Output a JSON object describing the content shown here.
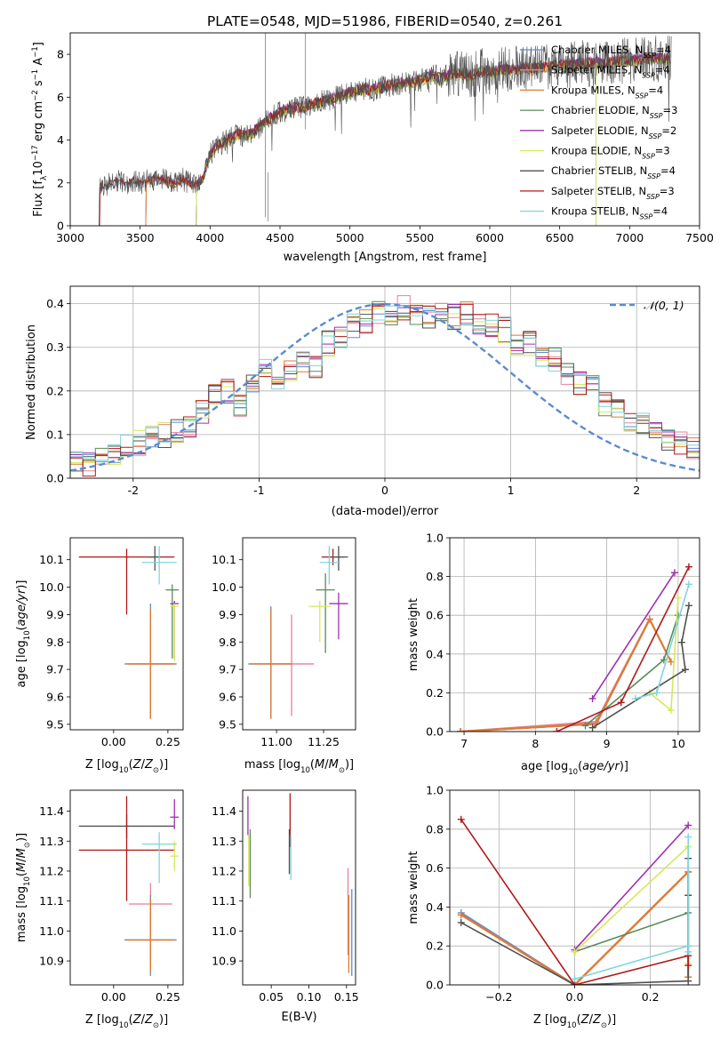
{
  "title": "PLATE=0548, MJD=51986, FIBERID=0540, z=0.261",
  "colors": {
    "Chabrier MILES": "#5b8bd0",
    "Salpeter MILES": "#e4829a",
    "Kroupa MILES": "#de7a32",
    "Chabrier ELODIE": "#5a8a5a",
    "Salpeter ELODIE": "#a030b0",
    "Kroupa ELODIE": "#d6e85a",
    "Chabrier STELIB": "#505050",
    "Salpeter STELIB": "#b01818",
    "Kroupa STELIB": "#80d4dc"
  },
  "chart_data": [
    {
      "id": "spectrum",
      "type": "line",
      "xlabel": "wavelength [Angstrom, rest frame]",
      "ylabel": "Flux [f_λ 10^-17 erg cm^-2 s^-1 A^-1]",
      "xlim": [
        3000,
        7500
      ],
      "ylim": [
        0,
        9
      ],
      "xticks": [
        3000,
        3500,
        4000,
        4500,
        5000,
        5500,
        6000,
        6500,
        7000,
        7500
      ],
      "yticks": [
        0,
        2,
        4,
        6,
        8
      ],
      "legend_position": "top-right",
      "legend": [
        {
          "label": "Chabrier MILES, N",
          "sub": "SSP",
          "tail": "=4",
          "model": "Chabrier MILES"
        },
        {
          "label": "Salpeter MILES, N",
          "sub": "SSP",
          "tail": "=4",
          "model": "Salpeter MILES"
        },
        {
          "label": "Kroupa MILES, N",
          "sub": "SSP",
          "tail": "=4",
          "model": "Kroupa MILES"
        },
        {
          "label": "Chabrier ELODIE, N",
          "sub": "SSP",
          "tail": "=3",
          "model": "Chabrier ELODIE"
        },
        {
          "label": "Salpeter ELODIE, N",
          "sub": "SSP",
          "tail": "=2",
          "model": "Salpeter ELODIE"
        },
        {
          "label": "Kroupa ELODIE, N",
          "sub": "SSP",
          "tail": "=3",
          "model": "Kroupa ELODIE"
        },
        {
          "label": "Chabrier STELIB, N",
          "sub": "SSP",
          "tail": "=4",
          "model": "Chabrier STELIB"
        },
        {
          "label": "Salpeter STELIB, N",
          "sub": "SSP",
          "tail": "=3",
          "model": "Salpeter STELIB"
        },
        {
          "label": "Kroupa STELIB, N",
          "sub": "SSP",
          "tail": "=4",
          "model": "Kroupa STELIB"
        }
      ],
      "data_wavelength": [
        3200,
        3250,
        3300,
        3350,
        3400,
        3450,
        3500,
        3550,
        3600,
        3650,
        3700,
        3750,
        3800,
        3850,
        3900,
        3950,
        4000,
        4050,
        4100,
        4150,
        4200,
        4250,
        4300,
        4350,
        4400,
        4450,
        4500,
        4550,
        4600,
        4650,
        4700,
        4750,
        4800,
        4850,
        4900,
        4950,
        5000,
        5050,
        5100,
        5150,
        5200,
        5250,
        5300,
        5350,
        5400,
        5450,
        5500,
        5550,
        5600,
        5650,
        5700,
        5750,
        5800,
        5850,
        5900,
        5950,
        6000,
        6050,
        6100,
        6150,
        6200,
        6250,
        6300,
        6350,
        6400,
        6450,
        6500,
        6550,
        6600,
        6650,
        6700,
        6750,
        6800,
        6850,
        6900,
        6950,
        7000,
        7050,
        7100,
        7150,
        7200,
        7250,
        7300
      ],
      "data_flux": [
        1.8,
        1.9,
        2.0,
        2.1,
        2.0,
        2.1,
        2.0,
        2.1,
        2.2,
        2.2,
        2.1,
        2.0,
        2.2,
        2.0,
        1.9,
        2.2,
        3.3,
        3.8,
        3.9,
        4.1,
        4.3,
        4.2,
        4.3,
        4.6,
        4.9,
        5.1,
        5.3,
        5.4,
        5.5,
        5.5,
        5.6,
        5.7,
        5.8,
        5.9,
        6.0,
        6.1,
        6.2,
        6.3,
        6.4,
        6.3,
        6.4,
        6.5,
        6.6,
        6.6,
        6.7,
        6.7,
        6.8,
        6.9,
        7.0,
        6.9,
        7.0,
        7.1,
        7.1,
        7.0,
        7.1,
        7.2,
        7.2,
        7.2,
        7.3,
        7.3,
        7.3,
        7.4,
        7.3,
        7.4,
        7.4,
        7.5,
        7.5,
        7.5,
        7.5,
        7.6,
        7.6,
        7.6,
        7.6,
        7.6,
        7.7,
        7.7,
        7.7,
        7.7,
        7.8,
        7.8,
        7.8,
        7.8,
        7.8
      ],
      "model_start": {
        "Chabrier MILES": 3540,
        "Salpeter MILES": 3540,
        "Kroupa MILES": 3540,
        "Chabrier ELODIE": 3900,
        "Salpeter ELODIE": 3900,
        "Kroupa ELODIE": 3900,
        "Chabrier STELIB": 3210,
        "Salpeter STELIB": 3210,
        "Kroupa STELIB": 3210
      }
    },
    {
      "id": "residuals",
      "type": "line",
      "xlabel": "(data-model)/error",
      "ylabel": "Normed distribution",
      "xlim": [
        -2.5,
        2.5
      ],
      "ylim": [
        0,
        0.44
      ],
      "xticks": [
        -2,
        -1,
        0,
        1,
        2
      ],
      "yticks": [
        0.0,
        0.1,
        0.2,
        0.3,
        0.4
      ],
      "grid": true,
      "legend_position": "top-right",
      "legend_label": "𝒩(0, 1)",
      "reference_curve": "gaussian mean 0 sigma 1",
      "bin_width": 0.1,
      "base_hist": [
        0.04,
        0.03,
        0.05,
        0.06,
        0.07,
        0.08,
        0.09,
        0.1,
        0.11,
        0.12,
        0.15,
        0.19,
        0.2,
        0.17,
        0.21,
        0.26,
        0.23,
        0.24,
        0.27,
        0.26,
        0.31,
        0.32,
        0.35,
        0.36,
        0.38,
        0.37,
        0.39,
        0.38,
        0.37,
        0.39,
        0.37,
        0.38,
        0.36,
        0.35,
        0.34,
        0.31,
        0.31,
        0.28,
        0.27,
        0.24,
        0.22,
        0.21,
        0.17,
        0.15,
        0.13,
        0.12,
        0.1,
        0.09,
        0.08,
        0.07
      ]
    },
    {
      "id": "age_vs_Z",
      "type": "scatter",
      "xlabel": "Z [log10(Z/Z⊙)]",
      "ylabel": "age [log10(age/yr)]",
      "xlim": [
        -0.2,
        0.32
      ],
      "ylim": [
        9.48,
        10.18
      ],
      "xticks": [
        0.0,
        0.25
      ],
      "xticklabels": [
        "0.00",
        "0.25"
      ],
      "yticks": [
        9.5,
        9.6,
        9.7,
        9.8,
        9.9,
        10.0,
        10.1
      ],
      "points": [
        {
          "model": "Salpeter STELIB",
          "x": 0.06,
          "y": 10.11,
          "xerr": 0.22,
          "yerr": [
            0.21,
            0.03
          ]
        },
        {
          "model": "Chabrier STELIB",
          "x": 0.19,
          "y": 10.11,
          "xerr": 0.03,
          "yerr": [
            0.05,
            0.04
          ]
        },
        {
          "model": "Kroupa STELIB",
          "x": 0.21,
          "y": 10.09,
          "xerr": 0.08,
          "yerr": [
            0.08,
            0.06
          ]
        },
        {
          "model": "Chabrier ELODIE",
          "x": 0.27,
          "y": 9.99,
          "xerr": 0.03,
          "yerr": [
            0.25,
            0.02
          ]
        },
        {
          "model": "Salpeter ELODIE",
          "x": 0.28,
          "y": 9.94,
          "xerr": 0.02,
          "yerr": [
            0.2,
            0.01
          ]
        },
        {
          "model": "Kroupa ELODIE",
          "x": 0.28,
          "y": 9.93,
          "xerr": 0.02,
          "yerr": [
            0.2,
            0.01
          ]
        },
        {
          "model": "Chabrier MILES",
          "x": 0.17,
          "y": 9.72,
          "xerr": 0.12,
          "yerr": [
            0.2,
            0.22
          ]
        },
        {
          "model": "Salpeter MILES",
          "x": 0.17,
          "y": 9.72,
          "xerr": 0.1,
          "yerr": [
            0.18,
            0.19
          ]
        },
        {
          "model": "Kroupa MILES",
          "x": 0.17,
          "y": 9.72,
          "xerr": 0.11,
          "yerr": [
            0.2,
            0.2
          ]
        }
      ]
    },
    {
      "id": "age_vs_mass",
      "type": "scatter",
      "xlabel": "mass [log10(M/M⊙)]",
      "xlim": [
        10.82,
        11.42
      ],
      "ylim": [
        9.48,
        10.18
      ],
      "xticks": [
        11.0,
        11.25
      ],
      "xticklabels": [
        "11.00",
        "11.25"
      ],
      "yticks": [
        9.5,
        9.6,
        9.7,
        9.8,
        9.9,
        10.0,
        10.1
      ],
      "points": [
        {
          "model": "Salpeter STELIB",
          "x": 11.3,
          "y": 10.11,
          "xerr": 0.06,
          "yerr": [
            0.03,
            0.03
          ]
        },
        {
          "model": "Chabrier STELIB",
          "x": 11.33,
          "y": 10.11,
          "xerr": 0.05,
          "yerr": [
            0.05,
            0.04
          ]
        },
        {
          "model": "Kroupa STELIB",
          "x": 11.28,
          "y": 10.09,
          "xerr": 0.05,
          "yerr": [
            0.08,
            0.06
          ]
        },
        {
          "model": "Chabrier ELODIE",
          "x": 11.26,
          "y": 9.99,
          "xerr": 0.05,
          "yerr": [
            0.23,
            0.06
          ]
        },
        {
          "model": "Salpeter ELODIE",
          "x": 11.33,
          "y": 9.94,
          "xerr": 0.05,
          "yerr": [
            0.13,
            0.04
          ]
        },
        {
          "model": "Kroupa ELODIE",
          "x": 11.23,
          "y": 9.93,
          "xerr": 0.06,
          "yerr": [
            0.13,
            0.02
          ]
        },
        {
          "model": "Chabrier MILES",
          "x": 10.97,
          "y": 9.72,
          "xerr": 0.12,
          "yerr": [
            0.2,
            0.21
          ]
        },
        {
          "model": "Salpeter MILES",
          "x": 11.08,
          "y": 9.72,
          "xerr": 0.12,
          "yerr": [
            0.19,
            0.18
          ]
        },
        {
          "model": "Kroupa MILES",
          "x": 10.97,
          "y": 9.72,
          "xerr": 0.11,
          "yerr": [
            0.2,
            0.2
          ]
        }
      ]
    },
    {
      "id": "weight_vs_age",
      "type": "line",
      "xlabel": "age [log10(age/yr)]",
      "ylabel": "mass weight",
      "xlim": [
        6.8,
        10.3
      ],
      "ylim": [
        0,
        1
      ],
      "xticks": [
        7,
        8,
        9,
        10
      ],
      "yticks": [
        0.0,
        0.2,
        0.4,
        0.6,
        0.8,
        1.0
      ],
      "grid": true,
      "series": [
        {
          "model": "Chabrier MILES",
          "x": [
            6.95,
            8.85,
            9.6
          ],
          "y": [
            0.0,
            0.04,
            0.58
          ]
        },
        {
          "model": "Salpeter MILES",
          "x": [
            6.95,
            8.85,
            9.6
          ],
          "y": [
            0.0,
            0.05,
            0.58
          ]
        },
        {
          "model": "Kroupa MILES",
          "x": [
            6.95,
            8.85,
            9.6,
            9.9
          ],
          "y": [
            0.0,
            0.04,
            0.58,
            0.36
          ]
        },
        {
          "model": "Chabrier ELODIE",
          "x": [
            8.7,
            9.8,
            10.0
          ],
          "y": [
            0.03,
            0.37,
            0.6
          ]
        },
        {
          "model": "Salpeter ELODIE",
          "x": [
            8.8,
            9.95
          ],
          "y": [
            0.17,
            0.82
          ]
        },
        {
          "model": "Kroupa ELODIE",
          "x": [
            9.6,
            9.9,
            10.0
          ],
          "y": [
            0.2,
            0.11,
            0.69
          ]
        },
        {
          "model": "Chabrier STELIB",
          "x": [
            8.8,
            10.1,
            10.05,
            10.15
          ],
          "y": [
            0.02,
            0.32,
            0.46,
            0.65
          ]
        },
        {
          "model": "Salpeter STELIB",
          "x": [
            8.3,
            9.2,
            10.15
          ],
          "y": [
            0.0,
            0.15,
            0.85
          ]
        },
        {
          "model": "Kroupa STELIB",
          "x": [
            9.4,
            9.7,
            10.15
          ],
          "y": [
            0.17,
            0.2,
            0.76
          ]
        }
      ]
    },
    {
      "id": "mass_vs_Z",
      "type": "scatter",
      "xlabel": "Z [log10(Z/Z⊙)]",
      "ylabel": "mass [log10(M/M⊙)]",
      "xlim": [
        -0.2,
        0.32
      ],
      "ylim": [
        10.82,
        11.47
      ],
      "xticks": [
        0.0,
        0.25
      ],
      "xticklabels": [
        "0.00",
        "0.25"
      ],
      "yticks": [
        10.9,
        11.0,
        11.1,
        11.2,
        11.3,
        11.4
      ],
      "points": [
        {
          "model": "Chabrier STELIB",
          "x": 0.06,
          "y": 11.35,
          "xerr": 0.22,
          "yerr": [
            0.04,
            0.04
          ]
        },
        {
          "model": "Salpeter STELIB",
          "x": 0.06,
          "y": 11.27,
          "xerr": 0.22,
          "yerr": [
            0.17,
            0.18
          ]
        },
        {
          "model": "Salpeter ELODIE",
          "x": 0.28,
          "y": 11.38,
          "xerr": 0.02,
          "yerr": [
            0.04,
            0.06
          ]
        },
        {
          "model": "Kroupa STELIB",
          "x": 0.21,
          "y": 11.29,
          "xerr": 0.08,
          "yerr": [
            0.13,
            0.04
          ]
        },
        {
          "model": "Kroupa ELODIE",
          "x": 0.28,
          "y": 11.25,
          "xerr": 0.02,
          "yerr": [
            0.05,
            0.05
          ]
        },
        {
          "model": "Salpeter MILES",
          "x": 0.17,
          "y": 11.09,
          "xerr": 0.1,
          "yerr": [
            0.19,
            0.07
          ]
        },
        {
          "model": "Chabrier MILES",
          "x": 0.17,
          "y": 10.97,
          "xerr": 0.12,
          "yerr": [
            0.12,
            0.15
          ]
        },
        {
          "model": "Kroupa MILES",
          "x": 0.17,
          "y": 10.97,
          "xerr": 0.11,
          "yerr": [
            0.11,
            0.14
          ]
        }
      ]
    },
    {
      "id": "mass_vs_ebv",
      "type": "scatter",
      "xlabel": "E(B-V)",
      "xlim": [
        0.012,
        0.162
      ],
      "ylim": [
        10.82,
        11.47
      ],
      "xticks": [
        0.05,
        0.1,
        0.15
      ],
      "xticklabels": [
        "0.05",
        "0.10",
        "0.15"
      ],
      "yticks": [
        10.9,
        11.0,
        11.1,
        11.2,
        11.3,
        11.4
      ],
      "points": [
        {
          "model": "Salpeter ELODIE",
          "x": 0.019,
          "y": 11.38,
          "yerr": [
            0.06,
            0.07
          ]
        },
        {
          "model": "Kroupa ELODIE",
          "x": 0.02,
          "y": 11.25,
          "yerr": [
            0.1,
            0.07
          ]
        },
        {
          "model": "Chabrier ELODIE",
          "x": 0.022,
          "y": 11.22,
          "yerr": [
            0.11,
            0.12
          ]
        },
        {
          "model": "Salpeter STELIB",
          "x": 0.075,
          "y": 11.35,
          "yerr": [
            0.07,
            0.11
          ]
        },
        {
          "model": "Chabrier STELIB",
          "x": 0.074,
          "y": 11.28,
          "yerr": [
            0.09,
            0.06
          ]
        },
        {
          "model": "Kroupa STELIB",
          "x": 0.076,
          "y": 11.26,
          "yerr": [
            0.09,
            0.06
          ]
        },
        {
          "model": "Salpeter MILES",
          "x": 0.152,
          "y": 11.09,
          "yerr": [
            0.17,
            0.12
          ]
        },
        {
          "model": "Kroupa MILES",
          "x": 0.153,
          "y": 10.97,
          "yerr": [
            0.11,
            0.15
          ]
        },
        {
          "model": "Chabrier MILES",
          "x": 0.157,
          "y": 10.97,
          "yerr": [
            0.12,
            0.17
          ]
        }
      ]
    },
    {
      "id": "weight_vs_Z",
      "type": "line",
      "xlabel": "Z [log10(Z/Z⊙)]",
      "ylabel": "mass weight",
      "xlim": [
        -0.33,
        0.33
      ],
      "ylim": [
        0,
        1
      ],
      "xticks": [
        -0.2,
        0.0,
        0.2
      ],
      "xticklabels": [
        "−0.2",
        "0.0",
        "0.2"
      ],
      "yticks": [
        0.0,
        0.2,
        0.4,
        0.6,
        0.8,
        1.0
      ],
      "grid": true,
      "series": [
        {
          "model": "Chabrier MILES",
          "x": [
            -0.3,
            0.0,
            0.3
          ],
          "y": [
            0.37,
            0.0,
            0.58
          ]
        },
        {
          "model": "Salpeter MILES",
          "x": [
            -0.3,
            0.0,
            0.3
          ],
          "y": [
            0.36,
            0.0,
            0.58
          ]
        },
        {
          "model": "Kroupa MILES",
          "x": [
            -0.3,
            0.0,
            0.3,
            0.3
          ],
          "y": [
            0.36,
            0.0,
            0.58,
            0.04
          ]
        },
        {
          "model": "Chabrier ELODIE",
          "x": [
            0.0,
            0.3
          ],
          "y": [
            0.17,
            0.37
          ]
        },
        {
          "model": "Salpeter ELODIE",
          "x": [
            0.0,
            0.3
          ],
          "y": [
            0.18,
            0.82
          ]
        },
        {
          "model": "Kroupa ELODIE",
          "x": [
            0.0,
            0.3,
            0.3
          ],
          "y": [
            0.17,
            0.71,
            0.11
          ]
        },
        {
          "model": "Chabrier STELIB",
          "x": [
            -0.3,
            0.0,
            0.3,
            0.3,
            0.3
          ],
          "y": [
            0.32,
            0.0,
            0.02,
            0.46,
            0.65
          ]
        },
        {
          "model": "Salpeter STELIB",
          "x": [
            -0.3,
            0.0,
            0.3,
            0.3
          ],
          "y": [
            0.85,
            0.0,
            0.15,
            0.1
          ]
        },
        {
          "model": "Kroupa STELIB",
          "x": [
            0.0,
            0.3,
            0.3,
            0.3
          ],
          "y": [
            0.03,
            0.2,
            0.76,
            0.17
          ]
        }
      ]
    }
  ]
}
